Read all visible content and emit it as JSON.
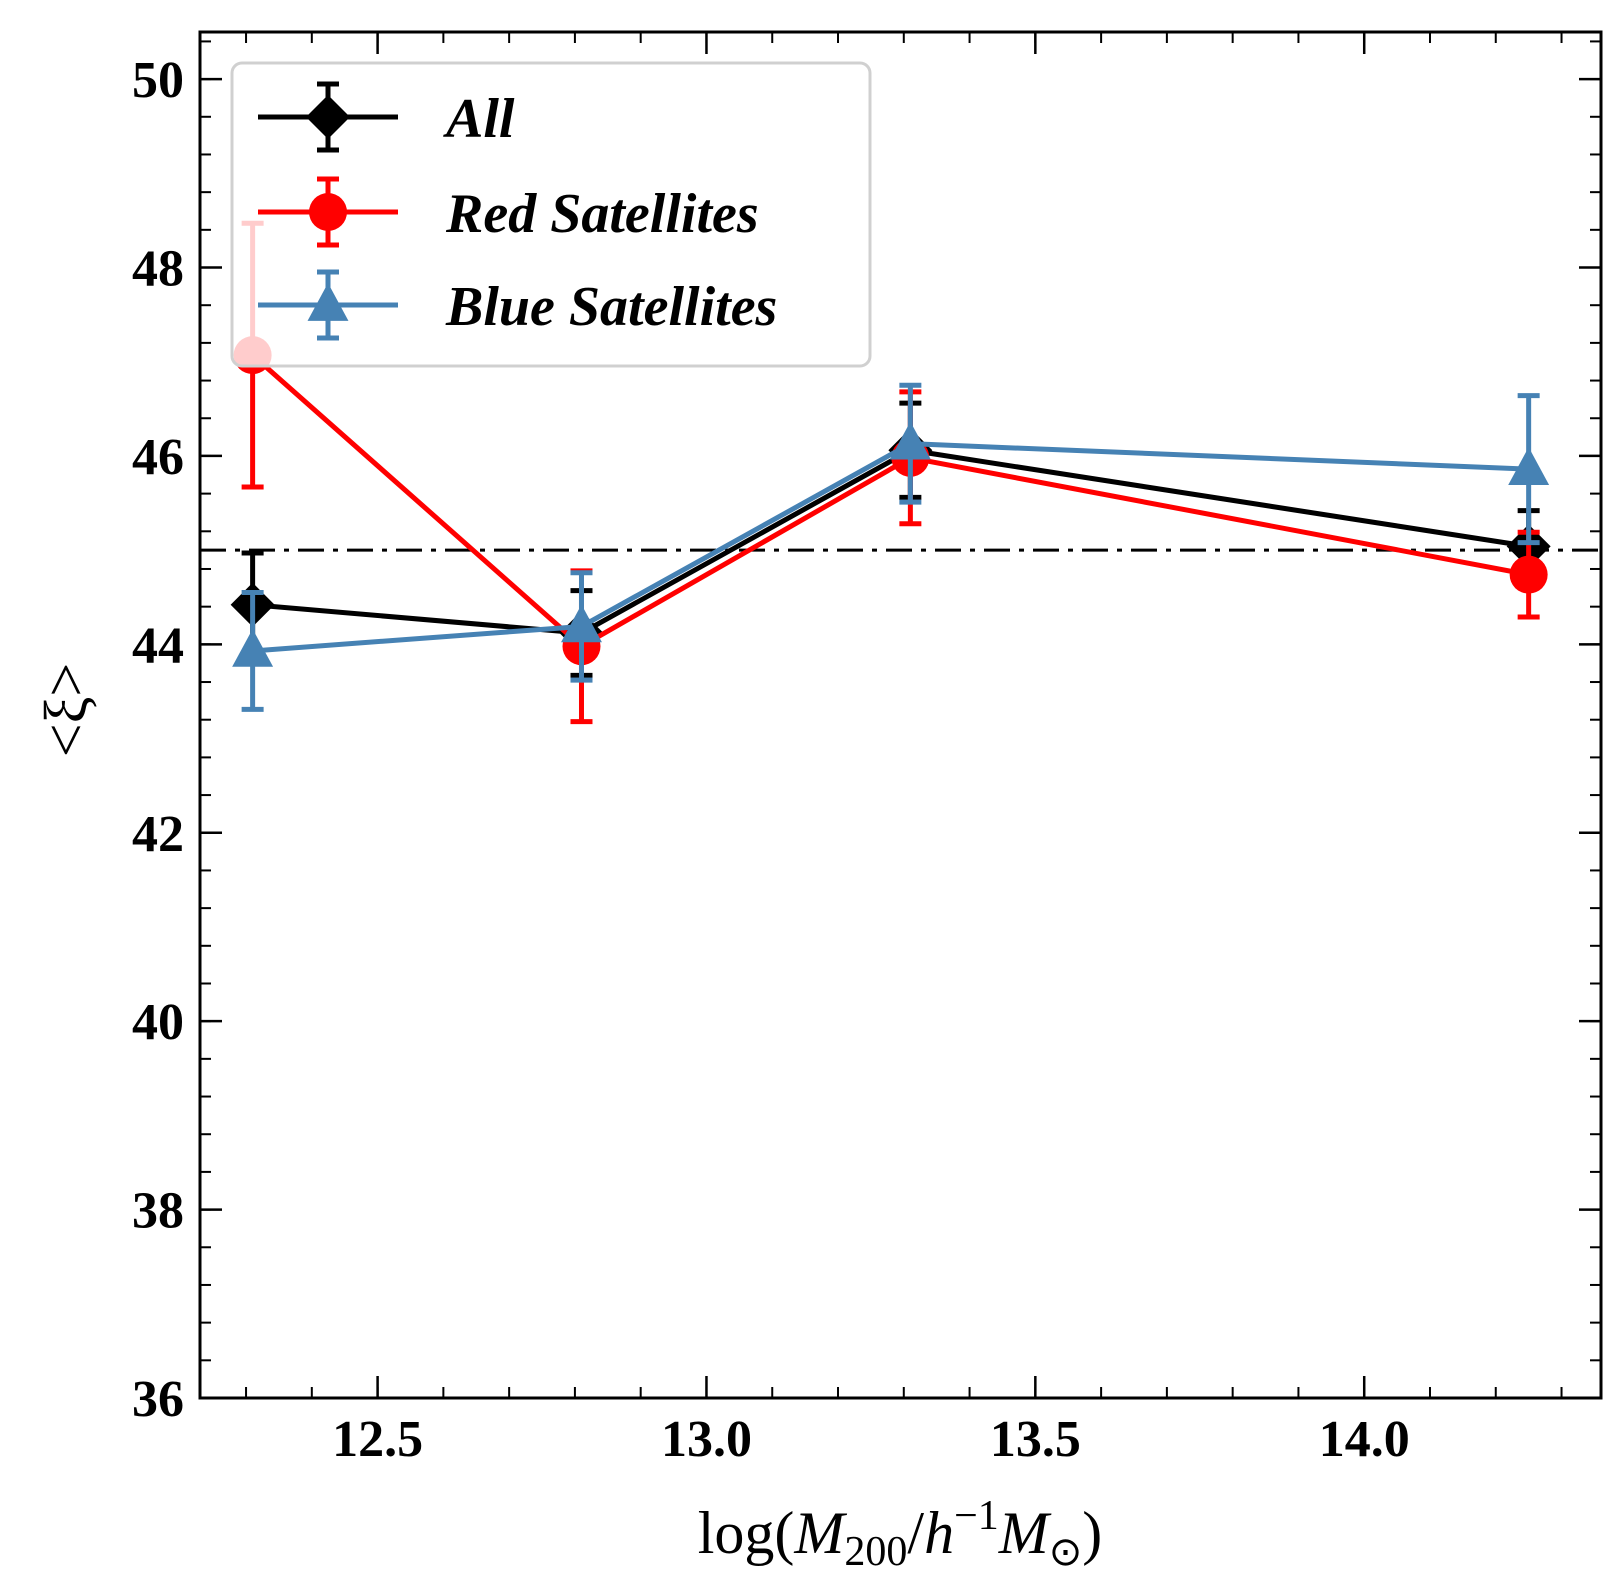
{
  "chart_data": {
    "type": "line",
    "xlabel": "log(M200/h−1M⊙)",
    "xlabel_parts": {
      "pre": "log(",
      "m1": "M",
      "sub200": "200",
      "slash": "/",
      "h": "h",
      "sup": "−1",
      "m2": "M",
      "sun": "⊙",
      "post": ")"
    },
    "ylabel": "<ξ>",
    "xlim": [
      12.23,
      14.36
    ],
    "ylim": [
      36,
      50.5
    ],
    "x_ticks": [
      "12.5",
      "13.0",
      "13.5",
      "14.0"
    ],
    "y_ticks": [
      "36",
      "38",
      "40",
      "42",
      "44",
      "46",
      "48",
      "50"
    ],
    "reference_line": {
      "y": 45,
      "style": "dash-dot",
      "color": "#000000"
    },
    "legend_position": "top-left",
    "grid": false,
    "series": [
      {
        "name": "All",
        "color": "#000000",
        "marker": "diamond",
        "x": [
          12.31,
          12.81,
          13.31,
          14.25
        ],
        "y": [
          44.42,
          44.12,
          46.06,
          45.04
        ],
        "yerr": [
          0.55,
          0.45,
          0.5,
          0.38
        ]
      },
      {
        "name": "Red Satellites",
        "color": "#ff0000",
        "marker": "circle",
        "x": [
          12.31,
          12.81,
          13.31,
          14.25
        ],
        "y": [
          47.07,
          43.98,
          45.98,
          44.74
        ],
        "yerr": [
          1.4,
          0.8,
          0.7,
          0.45
        ]
      },
      {
        "name": "Blue Satellites",
        "color": "#4682b4",
        "marker": "triangle",
        "x": [
          12.31,
          12.81,
          13.31,
          14.25
        ],
        "y": [
          43.93,
          44.19,
          46.13,
          45.86
        ],
        "yerr": [
          0.62,
          0.57,
          0.62,
          0.78
        ]
      }
    ]
  }
}
